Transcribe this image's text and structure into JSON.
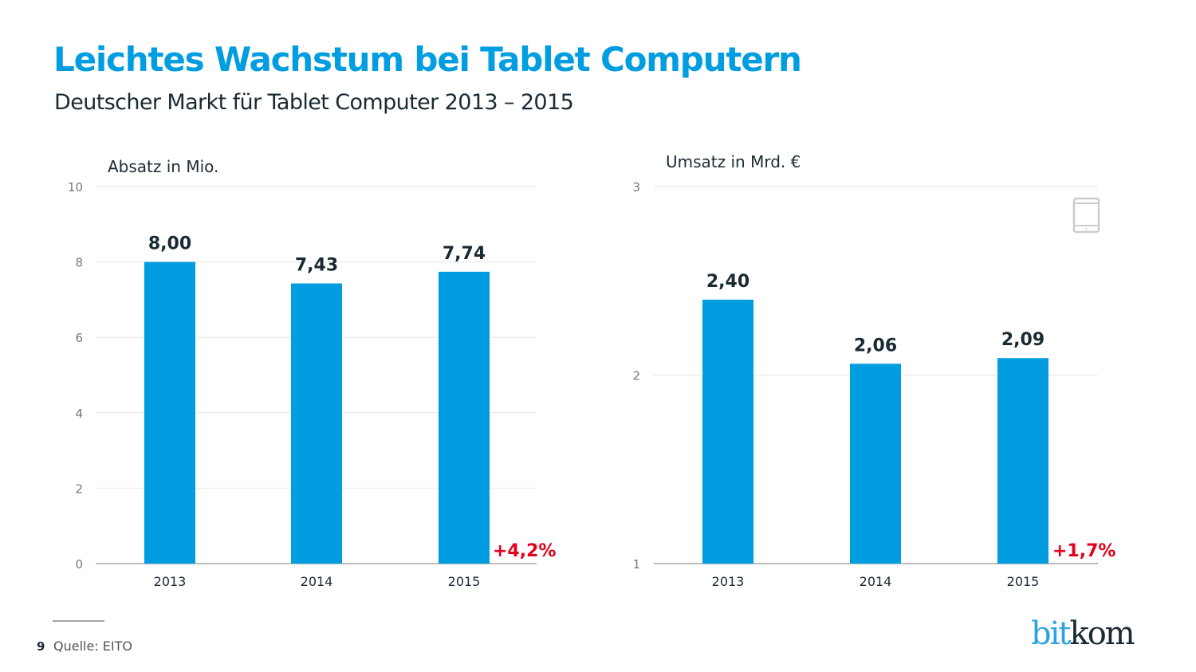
{
  "header": {
    "title": "Leichtes Wachstum bei Tablet Computern",
    "subtitle": "Deutscher Markt für Tablet Computer 2013 – 2015"
  },
  "footer": {
    "page_number": "9",
    "source": "Quelle: EITO",
    "logo_part1": "bit",
    "logo_part2": "kom"
  },
  "colors": {
    "title": "#009de0",
    "bar": "#009de0",
    "growth": "#e2001a",
    "value_label": "#1a2a33",
    "grid": "#e6e6e6",
    "axis": "#a6a6a6",
    "tick": "#777777"
  },
  "icons": {
    "right_chart_decoration": "tablet-icon"
  },
  "chart_data": [
    {
      "type": "bar",
      "title": "Absatz in Mio.",
      "xlabel": "",
      "ylabel": "Absatz in Mio.",
      "categories": [
        "2013",
        "2014",
        "2015"
      ],
      "values": [
        8.0,
        7.43,
        7.74
      ],
      "value_labels": [
        "8,00",
        "7,43",
        "7,74"
      ],
      "ylim": [
        0,
        10
      ],
      "yticks": [
        0,
        2,
        4,
        6,
        8,
        10
      ],
      "ytick_labels": [
        "0",
        "2",
        "4",
        "6",
        "8",
        "10"
      ],
      "grid": true,
      "annotation": "+4,2%"
    },
    {
      "type": "bar",
      "title": "Umsatz in Mrd. €",
      "xlabel": "",
      "ylabel": "Umsatz in Mrd. €",
      "categories": [
        "2013",
        "2014",
        "2015"
      ],
      "values": [
        2.4,
        2.06,
        2.09
      ],
      "value_labels": [
        "2,40",
        "2,06",
        "2,09"
      ],
      "ylim": [
        1,
        3
      ],
      "yticks": [
        1,
        2,
        3
      ],
      "ytick_labels": [
        "1",
        "2",
        "3"
      ],
      "grid": true,
      "annotation": "+1,7%"
    }
  ]
}
